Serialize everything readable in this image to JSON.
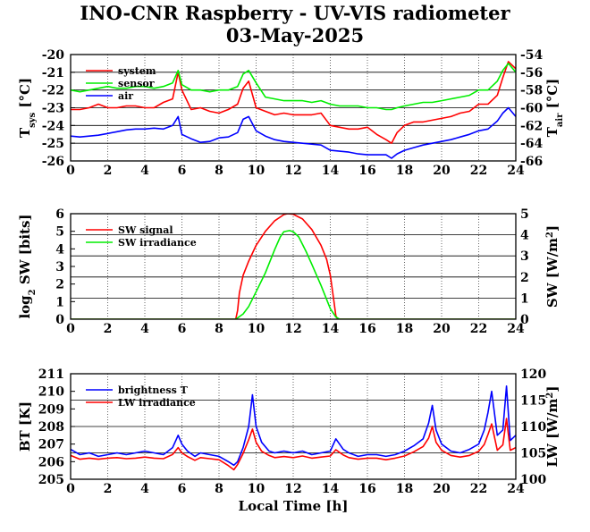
{
  "title": "INO-CNR Raspberry - UV-VIS radiometer",
  "subtitle": "03-May-2025",
  "colors": {
    "red": "#ff0000",
    "green": "#00ee00",
    "blue": "#0000ff",
    "grid": "#000000"
  },
  "chart_data": [
    {
      "type": "line",
      "name": "temperature",
      "xlabel": "",
      "ylabel_main": "T",
      "ylabel_sub": "sys",
      "ylabel_unit": " [°C]",
      "y2label_main": "T",
      "y2label_sub": "air",
      "y2label_unit": " [°C]",
      "xlim": [
        0,
        24
      ],
      "ylim": [
        -26,
        -20
      ],
      "y2lim": [
        -66,
        -54
      ],
      "xticks": [
        "0",
        "2",
        "4",
        "6",
        "8",
        "10",
        "12",
        "14",
        "16",
        "18",
        "20",
        "22",
        "24"
      ],
      "yticks": [
        "-26",
        "-25",
        "-24",
        "-23",
        "-22",
        "-21",
        "-20"
      ],
      "y2ticks": [
        "-66",
        "-64",
        "-62",
        "-60",
        "-58",
        "-56",
        "-54"
      ],
      "legend": [
        "system",
        "sensor",
        "air"
      ],
      "series": [
        {
          "name": "system",
          "color": "#ff0000",
          "axis": "left",
          "x": [
            0,
            0.5,
            1,
            1.5,
            2,
            2.5,
            3,
            3.5,
            4,
            4.5,
            5,
            5.5,
            5.8,
            6,
            6.5,
            7,
            7.5,
            8,
            8.5,
            9,
            9.3,
            9.6,
            10,
            10.5,
            11,
            11.5,
            12,
            12.5,
            13,
            13.5,
            14,
            14.5,
            15,
            15.5,
            16,
            16.5,
            17,
            17.3,
            17.6,
            18,
            18.5,
            19,
            19.5,
            20,
            20.5,
            21,
            21.5,
            22,
            22.5,
            23,
            23.3,
            23.6,
            24
          ],
          "y": [
            -23.1,
            -23.1,
            -23.0,
            -22.8,
            -23.0,
            -23.0,
            -22.9,
            -22.9,
            -23.0,
            -23.0,
            -22.7,
            -22.5,
            -21.0,
            -22.0,
            -23.1,
            -23.0,
            -23.2,
            -23.3,
            -23.1,
            -22.8,
            -21.9,
            -21.5,
            -23.0,
            -23.2,
            -23.4,
            -23.3,
            -23.4,
            -23.4,
            -23.4,
            -23.3,
            -24.0,
            -24.1,
            -24.2,
            -24.2,
            -24.1,
            -24.5,
            -24.8,
            -25.0,
            -24.4,
            -24.0,
            -23.8,
            -23.8,
            -23.7,
            -23.6,
            -23.5,
            -23.3,
            -23.2,
            -22.8,
            -22.8,
            -22.3,
            -21.3,
            -20.4,
            -20.8
          ]
        },
        {
          "name": "sensor",
          "color": "#00ee00",
          "axis": "left",
          "x": [
            0,
            0.5,
            1,
            1.5,
            2,
            2.5,
            3,
            3.5,
            4,
            4.5,
            5,
            5.5,
            5.8,
            6,
            6.5,
            7,
            7.5,
            8,
            8.5,
            9,
            9.3,
            9.6,
            10,
            10.5,
            11,
            11.5,
            12,
            12.5,
            13,
            13.5,
            14,
            14.5,
            15,
            15.5,
            16,
            16.5,
            17,
            17.3,
            17.6,
            18,
            18.5,
            19,
            19.5,
            20,
            20.5,
            21,
            21.5,
            22,
            22.5,
            23,
            23.3,
            23.6,
            24
          ],
          "y": [
            -22.0,
            -22.1,
            -22.0,
            -21.9,
            -21.8,
            -21.9,
            -21.9,
            -21.8,
            -21.8,
            -21.9,
            -21.8,
            -21.6,
            -20.9,
            -21.7,
            -22.0,
            -22.0,
            -22.1,
            -22.0,
            -22.0,
            -21.8,
            -21.1,
            -20.9,
            -21.6,
            -22.4,
            -22.5,
            -22.6,
            -22.6,
            -22.6,
            -22.7,
            -22.6,
            -22.8,
            -22.9,
            -22.9,
            -22.9,
            -23.0,
            -23.0,
            -23.1,
            -23.1,
            -23.0,
            -22.9,
            -22.8,
            -22.7,
            -22.7,
            -22.6,
            -22.5,
            -22.4,
            -22.3,
            -22.0,
            -22.0,
            -21.5,
            -20.9,
            -20.5,
            -21.0
          ]
        },
        {
          "name": "air",
          "color": "#0000ff",
          "axis": "right",
          "x": [
            0,
            0.5,
            1,
            1.5,
            2,
            2.5,
            3,
            3.5,
            4,
            4.5,
            5,
            5.5,
            5.8,
            6,
            6.5,
            7,
            7.5,
            8,
            8.5,
            9,
            9.3,
            9.6,
            10,
            10.5,
            11,
            11.5,
            12,
            12.5,
            13,
            13.5,
            14,
            14.5,
            15,
            15.5,
            16,
            16.5,
            17,
            17.3,
            17.6,
            18,
            18.5,
            19,
            19.5,
            20,
            20.5,
            21,
            21.5,
            22,
            22.5,
            23,
            23.3,
            23.6,
            24
          ],
          "y": [
            -63.2,
            -63.3,
            -63.2,
            -63.1,
            -62.9,
            -62.7,
            -62.5,
            -62.4,
            -62.4,
            -62.3,
            -62.4,
            -62.0,
            -61.0,
            -63.0,
            -63.5,
            -63.9,
            -63.8,
            -63.4,
            -63.3,
            -62.8,
            -61.3,
            -61.0,
            -62.6,
            -63.2,
            -63.6,
            -63.8,
            -63.9,
            -64.0,
            -64.1,
            -64.2,
            -64.8,
            -64.9,
            -65.0,
            -65.2,
            -65.3,
            -65.3,
            -65.3,
            -65.7,
            -65.2,
            -64.8,
            -64.5,
            -64.2,
            -64.0,
            -63.8,
            -63.6,
            -63.3,
            -63.0,
            -62.6,
            -62.4,
            -61.5,
            -60.6,
            -60.0,
            -61.0
          ]
        }
      ]
    },
    {
      "type": "line",
      "name": "shortwave",
      "xlabel": "",
      "ylabel_main": "log",
      "ylabel_sub": "2",
      "ylabel_unit": " SW [bits]",
      "y2label_main": "SW [W/m",
      "y2label_sup": "2",
      "y2label_unit": "]",
      "xlim": [
        0,
        24
      ],
      "ylim": [
        0,
        6
      ],
      "y2lim": [
        0,
        5
      ],
      "xticks": [
        "0",
        "2",
        "4",
        "6",
        "8",
        "10",
        "12",
        "14",
        "16",
        "18",
        "20",
        "22",
        "24"
      ],
      "yticks": [
        "0",
        "1",
        "2",
        "3",
        "4",
        "5",
        "6"
      ],
      "y2ticks": [
        "0",
        "1",
        "2",
        "3",
        "4",
        "5"
      ],
      "legend": [
        "SW signal",
        "SW irradiance"
      ],
      "series": [
        {
          "name": "SW signal",
          "color": "#ff0000",
          "axis": "left",
          "x": [
            0,
            8.9,
            9.0,
            9.1,
            9.3,
            9.6,
            10,
            10.5,
            11,
            11.5,
            11.7,
            12,
            12.5,
            13,
            13.5,
            13.8,
            14.0,
            14.2,
            14.3,
            14.4,
            24
          ],
          "y": [
            0,
            0,
            0.5,
            1.5,
            2.5,
            3.3,
            4.2,
            5.0,
            5.6,
            5.95,
            6.0,
            5.97,
            5.7,
            5.1,
            4.2,
            3.4,
            2.5,
            1.0,
            0.2,
            0,
            0
          ]
        },
        {
          "name": "SW irradiance",
          "color": "#00ee00",
          "axis": "right",
          "x": [
            0,
            8.9,
            9.3,
            9.6,
            10,
            10.5,
            11,
            11.3,
            11.5,
            11.8,
            12,
            12.3,
            12.7,
            13,
            13.5,
            14,
            14.3,
            14.5,
            24
          ],
          "y": [
            0,
            0,
            0.25,
            0.6,
            1.3,
            2.2,
            3.3,
            3.9,
            4.15,
            4.2,
            4.15,
            3.9,
            3.2,
            2.6,
            1.6,
            0.5,
            0.1,
            0,
            0
          ]
        }
      ]
    },
    {
      "type": "line",
      "name": "longwave",
      "xlabel": "Local Time [h]",
      "ylabel_main": "BT [K]",
      "y2label_main": "LW [W/m",
      "y2label_sup": "2",
      "y2label_unit": "]",
      "xlim": [
        0,
        24
      ],
      "ylim": [
        205,
        211
      ],
      "y2lim": [
        100,
        120
      ],
      "xticks": [
        "0",
        "2",
        "4",
        "6",
        "8",
        "10",
        "12",
        "14",
        "16",
        "18",
        "20",
        "22",
        "24"
      ],
      "yticks": [
        "205",
        "206",
        "207",
        "208",
        "209",
        "210",
        "211"
      ],
      "y2ticks": [
        "100",
        "105",
        "110",
        "115",
        "120"
      ],
      "legend": [
        "brightness T",
        "LW irradiance"
      ],
      "series": [
        {
          "name": "brightness T",
          "color": "#0000ff",
          "axis": "left",
          "x": [
            0,
            0.5,
            1,
            1.5,
            2,
            2.5,
            3,
            3.5,
            4,
            4.5,
            5,
            5.5,
            5.8,
            6,
            6.3,
            6.7,
            7,
            7.5,
            8,
            8.5,
            8.8,
            9,
            9.3,
            9.6,
            9.8,
            10,
            10.3,
            10.7,
            11,
            11.5,
            12,
            12.5,
            13,
            13.5,
            14,
            14.3,
            14.7,
            15,
            15.5,
            16,
            16.5,
            17,
            17.5,
            18,
            18.5,
            19,
            19.3,
            19.5,
            19.7,
            20,
            20.5,
            21,
            21.5,
            22,
            22.3,
            22.5,
            22.7,
            23,
            23.3,
            23.5,
            23.7,
            24
          ],
          "y": [
            206.7,
            206.4,
            206.5,
            206.3,
            206.4,
            206.5,
            206.4,
            206.5,
            206.6,
            206.5,
            206.4,
            206.8,
            207.5,
            207.0,
            206.6,
            206.3,
            206.5,
            206.4,
            206.3,
            206.0,
            205.8,
            206.0,
            206.8,
            208.0,
            209.8,
            208.0,
            207.1,
            206.6,
            206.5,
            206.6,
            206.5,
            206.6,
            206.4,
            206.5,
            206.6,
            207.3,
            206.7,
            206.5,
            206.3,
            206.4,
            206.4,
            206.3,
            206.4,
            206.6,
            206.9,
            207.3,
            208.2,
            209.2,
            207.8,
            207.0,
            206.6,
            206.5,
            206.7,
            207.0,
            207.8,
            208.8,
            210.0,
            207.5,
            207.8,
            210.3,
            207.2,
            207.5
          ]
        },
        {
          "name": "LW irradiance",
          "color": "#ff0000",
          "axis": "right",
          "x": [
            0,
            0.5,
            1,
            1.5,
            2,
            2.5,
            3,
            3.5,
            4,
            4.5,
            5,
            5.5,
            5.8,
            6,
            6.3,
            6.7,
            7,
            7.5,
            8,
            8.5,
            8.8,
            9,
            9.3,
            9.6,
            9.8,
            10,
            10.3,
            10.7,
            11,
            11.5,
            12,
            12.5,
            13,
            13.5,
            14,
            14.3,
            14.7,
            15,
            15.5,
            16,
            16.5,
            17,
            17.5,
            18,
            18.5,
            19,
            19.3,
            19.5,
            19.7,
            20,
            20.5,
            21,
            21.5,
            22,
            22.3,
            22.5,
            22.7,
            23,
            23.3,
            23.5,
            23.7,
            24
          ],
          "y": [
            104.5,
            103.8,
            104.0,
            103.8,
            104.0,
            104.1,
            103.9,
            104.0,
            104.2,
            104.0,
            103.9,
            104.7,
            106.0,
            105.0,
            104.3,
            103.6,
            104.1,
            103.9,
            103.7,
            102.6,
            101.8,
            102.8,
            104.9,
            107.5,
            109.5,
            107.0,
            105.3,
            104.5,
            104.1,
            104.3,
            104.1,
            104.4,
            104.0,
            104.2,
            104.4,
            105.6,
            104.6,
            104.1,
            103.8,
            104.0,
            104.0,
            103.7,
            104.0,
            104.4,
            105.2,
            106.2,
            107.8,
            110.0,
            107.0,
            105.5,
            104.5,
            104.2,
            104.5,
            105.3,
            106.6,
            108.5,
            110.5,
            105.5,
            106.5,
            111.5,
            105.5,
            106.0
          ]
        }
      ]
    }
  ]
}
